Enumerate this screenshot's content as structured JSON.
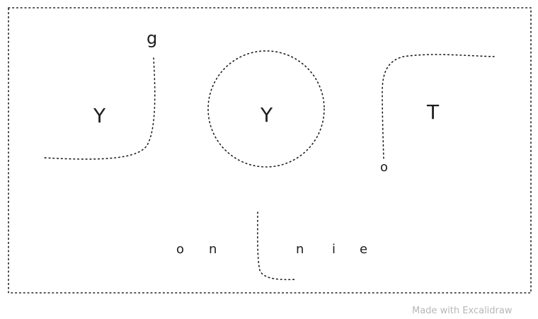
{
  "diagram": {
    "left_group": {
      "main_letter": "Y",
      "tail_letter": "g"
    },
    "center_group": {
      "main_letter": "Y"
    },
    "right_group": {
      "main_letter": "T",
      "tail_letter": "o"
    },
    "bottom_row": {
      "left_letters": [
        "o",
        "n"
      ],
      "right_letters": [
        "n",
        "i",
        "e"
      ]
    }
  },
  "watermark": {
    "text": "Made with Excalidraw"
  }
}
